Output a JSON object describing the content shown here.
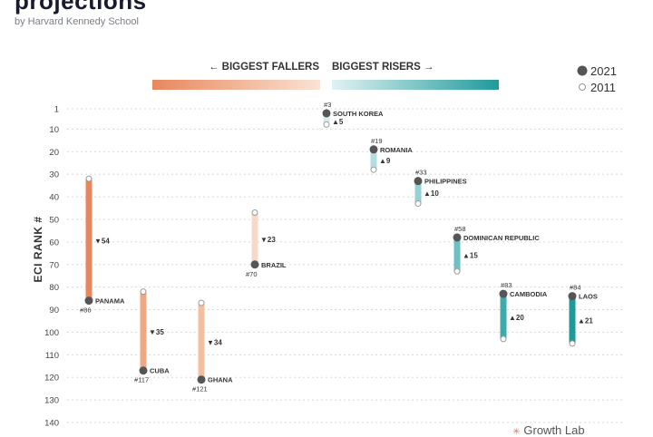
{
  "page": {
    "title": "projections",
    "byline": "by Harvard Kennedy School",
    "brand": "Growth Lab"
  },
  "colors": {
    "fallers_dark": "#e8875c",
    "fallers_light": "#f7d9c8",
    "risers_light": "#d4ecee",
    "risers_dark": "#1f9a9a",
    "dot_2021": "#555555",
    "dot_2011": "#ffffff",
    "grid": "#d8d8d8",
    "label": "#333333"
  },
  "chart_data": {
    "type": "dumbbell",
    "ylabel": "ECI RANK #",
    "ylim": [
      1,
      140
    ],
    "y_inverted": true,
    "yticks": [
      1,
      10,
      20,
      30,
      40,
      50,
      60,
      70,
      80,
      90,
      100,
      110,
      120,
      130,
      140
    ],
    "grid": true,
    "header_left": "← BIGGEST FALLERS",
    "header_right": "BIGGEST RISERS →",
    "legend": [
      {
        "label": "2021",
        "style": "filled"
      },
      {
        "label": "2011",
        "style": "hollow"
      }
    ],
    "legend_position": "top-right",
    "series": [
      {
        "country": "PANAMA",
        "rank_2011": 32,
        "rank_2021": 86,
        "change": "▼54",
        "rank_label": "#86",
        "color": "#e8875c"
      },
      {
        "country": "CUBA",
        "rank_2011": 82,
        "rank_2021": 117,
        "change": "▼35",
        "rank_label": "#117",
        "color": "#f0a882"
      },
      {
        "country": "GHANA",
        "rank_2011": 87,
        "rank_2021": 121,
        "change": "▼34",
        "rank_label": "#121",
        "color": "#f4bf9f"
      },
      {
        "country": "BRAZIL",
        "rank_2011": 47,
        "rank_2021": 70,
        "change": "▼23",
        "rank_label": "#70",
        "color": "#f7d9c8"
      },
      {
        "country": "SOUTH KOREA",
        "rank_2011": 8,
        "rank_2021": 3,
        "change": "▲5",
        "rank_label": "#3",
        "color": "#d4ecee"
      },
      {
        "country": "ROMANIA",
        "rank_2011": 28,
        "rank_2021": 19,
        "change": "▲9",
        "rank_label": "#19",
        "color": "#b4dfe2"
      },
      {
        "country": "PHILIPPINES",
        "rank_2011": 43,
        "rank_2021": 33,
        "change": "▲10",
        "rank_label": "#33",
        "color": "#94d2d5"
      },
      {
        "country": "DOMINICAN REPUBLIC",
        "rank_2011": 73,
        "rank_2021": 58,
        "change": "▲15",
        "rank_label": "#58",
        "color": "#6ec0c2"
      },
      {
        "country": "CAMBODIA",
        "rank_2011": 103,
        "rank_2021": 83,
        "change": "▲20",
        "rank_label": "#83",
        "color": "#3eaaab"
      },
      {
        "country": "LAOS",
        "rank_2011": 105,
        "rank_2021": 84,
        "change": "▲21",
        "rank_label": "#84",
        "color": "#1f9a9a"
      }
    ]
  }
}
